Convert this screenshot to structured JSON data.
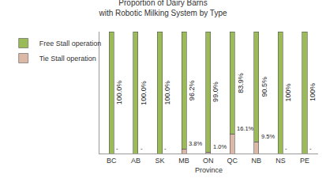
{
  "chart_data": {
    "type": "bar",
    "title": "Proportion of Dairy Barns\nwith Robotic Milking System by Type",
    "x_label": "Province",
    "categories": [
      "BC",
      "AB",
      "SK",
      "MB",
      "ON",
      "QC",
      "NB",
      "NS",
      "PE"
    ],
    "series": [
      {
        "name": "Tie Stall operation",
        "color": "#dcb9a7",
        "values": [
          0,
          0,
          0,
          3.8,
          1.0,
          16.1,
          9.5,
          0,
          0
        ],
        "value_labels": [
          "-",
          "-",
          "-",
          "3.8%",
          "1.0%",
          "16.1%",
          "9.5%",
          "-",
          "-"
        ]
      },
      {
        "name": "Free Stall operation",
        "color": "#9bbb59",
        "values": [
          100,
          100,
          100,
          96.2,
          99.0,
          83.9,
          90.5,
          100,
          100
        ],
        "value_labels": [
          "100.0%",
          "100.0%",
          "100.0%",
          "96.2%",
          "99.0%",
          "83.9%",
          "90.5%",
          "100%",
          "100%"
        ]
      }
    ],
    "stacked": true,
    "data_labels": true,
    "legend": "left",
    "grid": false,
    "tick_labels": "x",
    "ylim": [
      0,
      100
    ],
    "yticks": []
  }
}
